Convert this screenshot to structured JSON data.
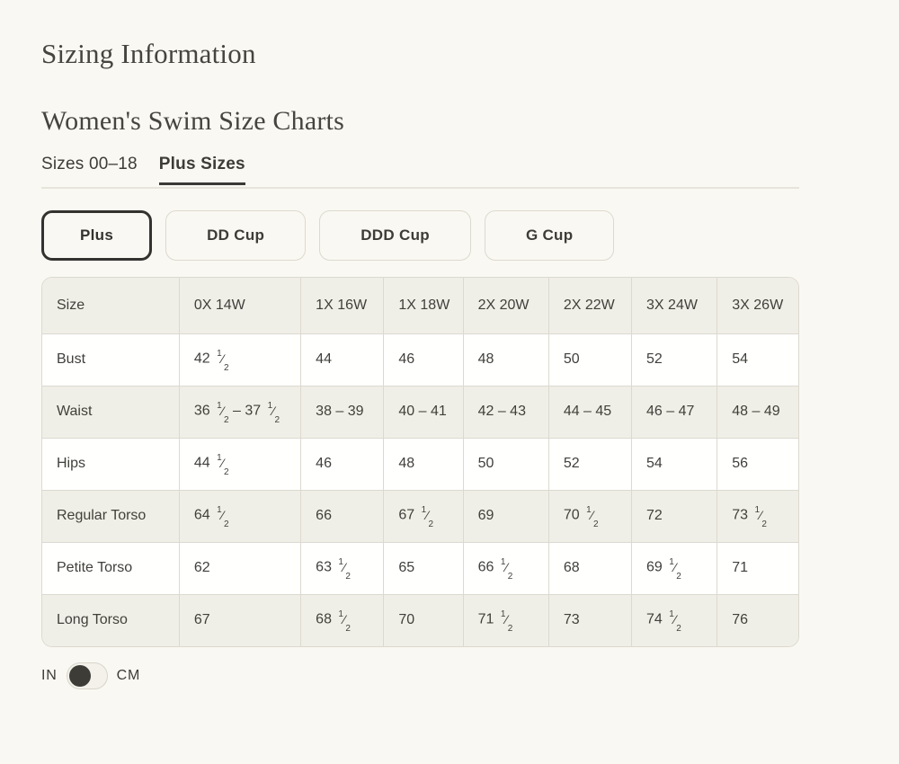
{
  "page": {
    "title": "Sizing Information",
    "section_title": "Women's Swim Size Charts"
  },
  "tabs": [
    {
      "label": "Sizes 00–18",
      "active": false
    },
    {
      "label": "Plus Sizes",
      "active": true
    }
  ],
  "filters": [
    {
      "label": "Plus",
      "selected": true
    },
    {
      "label": "DD Cup",
      "selected": false
    },
    {
      "label": "DDD Cup",
      "selected": false
    },
    {
      "label": "G Cup",
      "selected": false
    }
  ],
  "size_chart": {
    "columns": [
      "Size",
      "0X 14W",
      "1X 16W",
      "1X 18W",
      "2X 20W",
      "2X 22W",
      "3X 24W",
      "3X 26W"
    ],
    "rows": [
      {
        "label": "Bust",
        "values": [
          "42 1/2",
          "44",
          "46",
          "48",
          "50",
          "52",
          "54"
        ]
      },
      {
        "label": "Waist",
        "values": [
          "36 1/2 – 37 1/2",
          "38 – 39",
          "40 – 41",
          "42 – 43",
          "44 – 45",
          "46 – 47",
          "48 – 49"
        ]
      },
      {
        "label": "Hips",
        "values": [
          "44 1/2",
          "46",
          "48",
          "50",
          "52",
          "54",
          "56"
        ]
      },
      {
        "label": "Regular Torso",
        "values": [
          "64 1/2",
          "66",
          "67 1/2",
          "69",
          "70 1/2",
          "72",
          "73 1/2"
        ]
      },
      {
        "label": "Petite Torso",
        "values": [
          "62",
          "63 1/2",
          "65",
          "66 1/2",
          "68",
          "69 1/2",
          "71"
        ]
      },
      {
        "label": "Long Torso",
        "values": [
          "67",
          "68 1/2",
          "70",
          "71 1/2",
          "73",
          "74 1/2",
          "76"
        ]
      }
    ]
  },
  "unit_toggle": {
    "left_label": "IN",
    "right_label": "CM",
    "selected": "IN"
  },
  "colors": {
    "page_background": "#faf8f2",
    "text": "#3d3c37",
    "row_stripe": "#f0efe7",
    "table_border": "#dcd9cf",
    "active_accent": "#33322e",
    "toggle_knob": "#3d3c37"
  }
}
